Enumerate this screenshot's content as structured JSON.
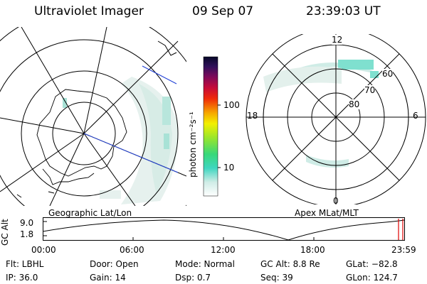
{
  "header": {
    "instrument": "Ultraviolet Imager",
    "date": "09 Sep 07",
    "time": "23:39:03 UT"
  },
  "colorbar": {
    "label": "photon cm⁻²s⁻¹",
    "ticks": [
      "100",
      "10"
    ]
  },
  "left_panel": {
    "caption": "Geographic Lat/Lon"
  },
  "right_panel": {
    "caption": "Apex MLat/MLT",
    "mlt_labels": [
      "12",
      "18",
      "6",
      "0"
    ],
    "mlat_labels": [
      "60",
      "70",
      "80"
    ]
  },
  "altitude_plot": {
    "ylabel": "GC Alt",
    "yticks": [
      "9.0",
      "1.8"
    ],
    "xticks": [
      "00:00",
      "06:00",
      "12:00",
      "18:00",
      "23:59"
    ]
  },
  "info": {
    "filter": "Flt: LBHL",
    "ip": "IP: 36.0",
    "door": "Door: Open",
    "gain": "Gain: 14",
    "mode": "Mode:  Normal",
    "dsp": "Dsp:     0.7",
    "gc_alt": "GC Alt: 8.8 Re",
    "seq": "Seq: 39",
    "glat": "GLat: −82.8",
    "glon": "GLon: 124.7"
  }
}
